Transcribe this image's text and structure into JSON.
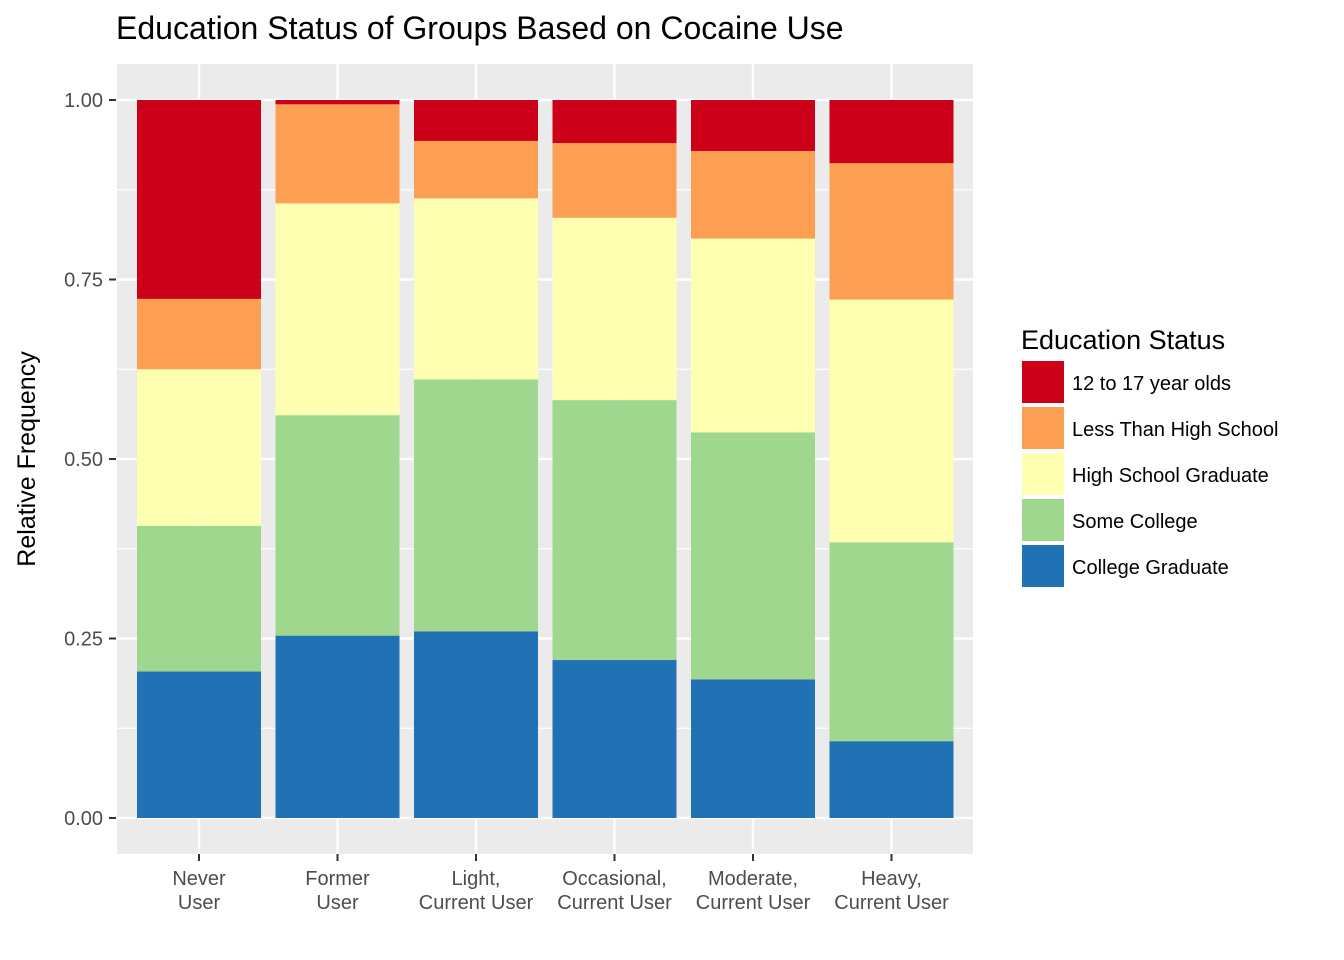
{
  "chart_data": {
    "type": "bar",
    "stacked": true,
    "title": "Education Status of Groups Based on Cocaine Use",
    "xlabel": "",
    "ylabel": "Relative Frequency",
    "ylim": [
      0,
      1
    ],
    "yticks": [
      "0.00",
      "0.25",
      "0.50",
      "0.75",
      "1.00"
    ],
    "ytick_values": [
      0,
      0.25,
      0.5,
      0.75,
      1.0
    ],
    "grid": true,
    "legend_position": "right",
    "legend_title": "Education Status",
    "categories": [
      [
        "Never",
        "User"
      ],
      [
        "Former",
        "User"
      ],
      [
        "Light,",
        "Current User"
      ],
      [
        "Occasional,",
        "Current User"
      ],
      [
        "Moderate,",
        "Current User"
      ],
      [
        "Heavy,",
        "Current User"
      ]
    ],
    "series": [
      {
        "name": "College Graduate",
        "color": "#2171b5",
        "values": [
          0.204,
          0.254,
          0.26,
          0.22,
          0.193,
          0.107
        ]
      },
      {
        "name": "Some College",
        "color": "#9fd78f",
        "values": [
          0.203,
          0.307,
          0.351,
          0.362,
          0.344,
          0.277
        ]
      },
      {
        "name": "High School Graduate",
        "color": "#ffffb2",
        "values": [
          0.218,
          0.295,
          0.252,
          0.254,
          0.27,
          0.338
        ]
      },
      {
        "name": "Less Than High School",
        "color": "#fd9f52",
        "values": [
          0.098,
          0.138,
          0.08,
          0.104,
          0.122,
          0.19
        ]
      },
      {
        "name": "12 to 17 year olds",
        "color": "#cc0018",
        "values": [
          0.277,
          0.006,
          0.057,
          0.06,
          0.071,
          0.088
        ]
      }
    ],
    "legend_order": [
      "12 to 17 year olds",
      "Less Than High School",
      "High School Graduate",
      "Some College",
      "College Graduate"
    ]
  }
}
